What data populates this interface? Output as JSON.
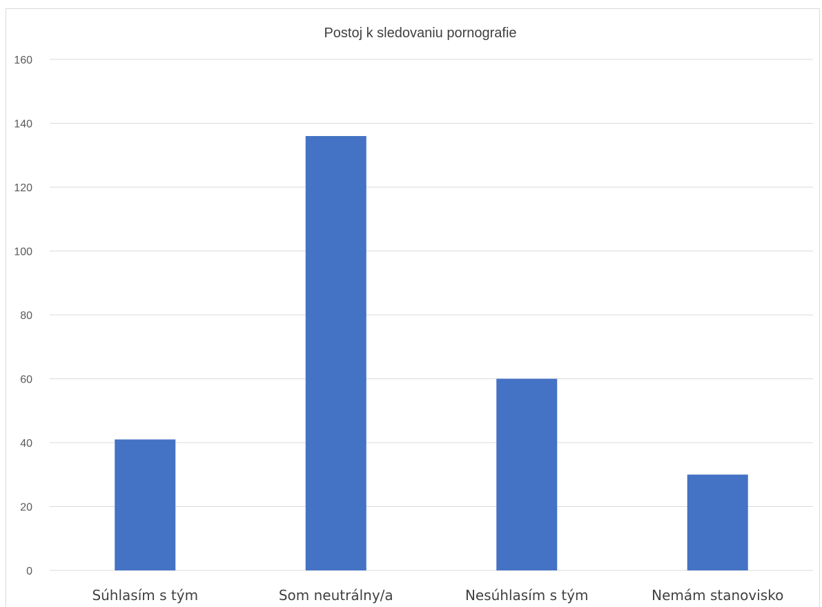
{
  "chart_data": {
    "type": "bar",
    "title": "Postoj k sledovaniu  pornografie",
    "categories": [
      "Súhlasím s tým",
      "Som neutrálny/a",
      "Nesúhlasím s tým",
      "Nemám stanovisko"
    ],
    "values": [
      41,
      136,
      60,
      30
    ],
    "ylim": [
      0,
      160
    ],
    "yticks": [
      0,
      20,
      40,
      60,
      80,
      100,
      120,
      140,
      160
    ],
    "xlabel": "",
    "ylabel": "",
    "grid": true,
    "legend": "none",
    "bar_color": "#4472C4",
    "grid_color": "#d9d9d9"
  }
}
